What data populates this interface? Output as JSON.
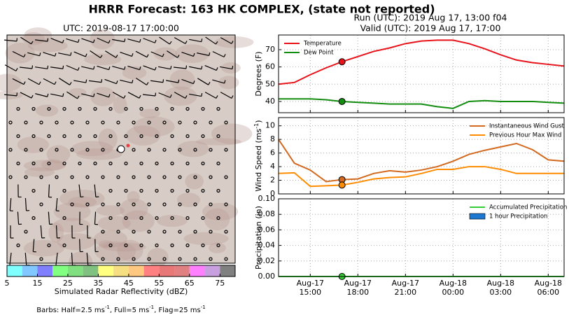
{
  "title": "HRRR Forecast: 163 HK COMPLEX, (state not reported)",
  "run_info": [
    "Run (UTC): 2019 Aug 17, 13:00 f04",
    "Valid (UTC): 2019 Aug 17, 17:00"
  ],
  "map": {
    "title": "UTC: 2019-08-17 17:00:00",
    "colorbar": {
      "label": "Simulated Radar Reflectivity (dBZ)",
      "lim": [
        5,
        80
      ],
      "ticks": [
        5,
        15,
        25,
        35,
        45,
        55,
        65,
        75
      ],
      "colors": [
        "#80ffff",
        "#80c8ff",
        "#8080ff",
        "#80ff80",
        "#80e080",
        "#80c080",
        "#ffff80",
        "#f5df80",
        "#ffc880",
        "#ff8080",
        "#e87878",
        "#e08080",
        "#ff80ff",
        "#c8a0e0",
        "#808080"
      ]
    },
    "note": [
      "Barbs: Half=2.5 ms",
      "-1",
      ", Full=5 ms",
      "-1",
      ", Flag=25 ms",
      "-1"
    ]
  },
  "chart_data": [
    {
      "type": "line",
      "ylabel": [
        "Degrees (F)"
      ],
      "ylim": [
        33.5,
        78.5
      ],
      "yticks": [
        40,
        50,
        60,
        70
      ],
      "grid": true,
      "legend": "upper left",
      "marker_index": 4,
      "categories": [
        null,
        null,
        null,
        null,
        null,
        null,
        null,
        null,
        null,
        null,
        null,
        null,
        null,
        null,
        null,
        null,
        null,
        null,
        null
      ],
      "series": [
        {
          "name": "Temperature",
          "color": "#e8121a",
          "values": [
            50,
            51,
            55.5,
            59.5,
            63,
            66,
            69,
            71,
            73.5,
            75,
            75.5,
            75.5,
            73.5,
            70.5,
            67,
            64,
            62.5,
            61.5,
            60.5
          ]
        },
        {
          "name": "Dew Point",
          "color": "#138d0f",
          "values": [
            41.5,
            41.5,
            41.5,
            41,
            40,
            39.5,
            39,
            38.5,
            38.5,
            38.5,
            37,
            36,
            40,
            40.5,
            40,
            40,
            40,
            39.5,
            39
          ]
        }
      ]
    },
    {
      "type": "line",
      "ylabel": [
        "Wind Speed (ms",
        "-1",
        ")"
      ],
      "ylim": [
        0,
        11.2
      ],
      "yticks": [
        0,
        2,
        4,
        6,
        8,
        10
      ],
      "grid": true,
      "legend": "upper right",
      "marker_index": 4,
      "categories": [
        null,
        null,
        null,
        null,
        null,
        null,
        null,
        null,
        null,
        null,
        null,
        null,
        null,
        null,
        null,
        null,
        null,
        null,
        null
      ],
      "series": [
        {
          "name": "Instantaneous Wind Gust",
          "color": "#d2691e",
          "values": [
            8,
            4.5,
            3.5,
            1.8,
            2.1,
            2.2,
            3,
            3.4,
            3.2,
            3.5,
            4,
            4.8,
            5.8,
            6.4,
            6.9,
            7.4,
            6.5,
            5,
            4.8
          ]
        },
        {
          "name": "Previous Hour Max Wind",
          "color": "#ff8c00",
          "values": [
            3,
            3.1,
            1.1,
            1.2,
            1.3,
            1.7,
            2.2,
            2.4,
            2.5,
            3,
            3.6,
            3.6,
            4,
            4,
            3.6,
            3,
            3,
            3,
            3
          ]
        }
      ]
    },
    {
      "type": "line",
      "ylabel": [
        "Precipitation (in)"
      ],
      "ylim": [
        0,
        0.1
      ],
      "yticks": [
        {
          "value": 0,
          "label": "0.00"
        },
        {
          "value": 0.02,
          "label": "0.02"
        },
        {
          "value": 0.04,
          "label": "0.04"
        },
        {
          "value": 0.06,
          "label": "0.06"
        },
        {
          "value": 0.08,
          "label": "0.08"
        },
        {
          "value": 0.1,
          "label": "0.10"
        }
      ],
      "grid": true,
      "legend": "upper right",
      "marker_index": 4,
      "categories": [
        null,
        null,
        "Aug-17\n15:00",
        null,
        null,
        "Aug-17\n18:00",
        null,
        null,
        "Aug-17\n21:00",
        null,
        null,
        "Aug-18\n00:00",
        null,
        null,
        "Aug-18\n03:00",
        null,
        null,
        "Aug-18\n06:00",
        null
      ],
      "series": [
        {
          "name": "Accumulated Precipitation",
          "color": "#33cc33",
          "values": [
            0,
            0,
            0,
            0,
            0,
            0,
            0,
            0,
            0,
            0,
            0,
            0,
            0,
            0,
            0,
            0,
            0,
            0,
            0
          ]
        },
        {
          "name": "1 hour Precipitation",
          "type": "bar",
          "color": "#1e78d2",
          "values": [
            0,
            0,
            0,
            0,
            0,
            0,
            0,
            0,
            0,
            0,
            0,
            0,
            0,
            0,
            0,
            0,
            0,
            0,
            0
          ]
        }
      ]
    }
  ]
}
